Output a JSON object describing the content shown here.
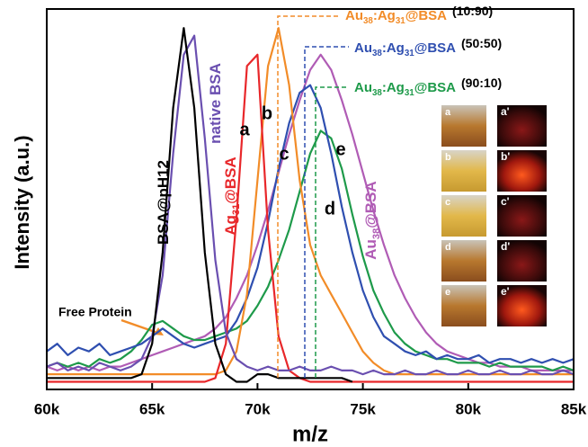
{
  "chart_data": {
    "type": "line",
    "x_label": "m/z",
    "y_label": "Intensity (a.u.)",
    "xlim": [
      60000,
      85000
    ],
    "ylim": [
      0,
      100
    ],
    "xticks": [
      {
        "value": 60000,
        "label": "60k"
      },
      {
        "value": 65000,
        "label": "65k"
      },
      {
        "value": 70000,
        "label": "70k"
      },
      {
        "value": 75000,
        "label": "75k"
      },
      {
        "value": 80000,
        "label": "80k"
      },
      {
        "value": 85000,
        "label": "85k"
      }
    ],
    "x": [
      60000,
      60500,
      61000,
      61500,
      62000,
      62500,
      63000,
      63500,
      64000,
      64500,
      65000,
      65500,
      66000,
      66500,
      67000,
      67500,
      68000,
      68500,
      69000,
      69500,
      70000,
      70500,
      71000,
      71500,
      72000,
      72500,
      73000,
      73500,
      74000,
      74500,
      75000,
      75500,
      76000,
      76500,
      77000,
      77500,
      78000,
      78500,
      79000,
      79500,
      80000,
      80500,
      81000,
      81500,
      82000,
      82500,
      83000,
      83500,
      84000,
      84500,
      85000
    ],
    "series": [
      {
        "color": "#b05cb5",
        "label": "e",
        "values": [
          6,
          5,
          6,
          5,
          6,
          5,
          6,
          6,
          7,
          8,
          9,
          10,
          11,
          12,
          13,
          14,
          16,
          19,
          24,
          30,
          38,
          47,
          57,
          67,
          76,
          84,
          88,
          84,
          76,
          67,
          57,
          47,
          38,
          30,
          24,
          19,
          15,
          12,
          10,
          9,
          8,
          7,
          7,
          6,
          6,
          6,
          5,
          5,
          5,
          5,
          5
        ]
      },
      {
        "color": "#1e9a4a",
        "label": "d",
        "values": [
          6,
          7,
          6,
          7,
          6,
          8,
          7,
          8,
          10,
          13,
          17,
          18,
          16,
          14,
          13,
          13,
          14,
          15,
          16,
          18,
          22,
          27,
          34,
          42,
          52,
          62,
          68,
          66,
          58,
          46,
          35,
          26,
          20,
          15,
          12,
          10,
          9,
          8,
          8,
          7,
          7,
          7,
          6,
          7,
          6,
          6,
          6,
          6,
          5,
          6,
          5
        ]
      },
      {
        "color": "#2f4fb0",
        "label": "c",
        "values": [
          10,
          12,
          9,
          11,
          10,
          12,
          9,
          10,
          11,
          12,
          14,
          16,
          14,
          12,
          11,
          12,
          13,
          14,
          18,
          24,
          32,
          44,
          58,
          70,
          78,
          80,
          74,
          62,
          48,
          36,
          26,
          19,
          14,
          12,
          10,
          9,
          10,
          8,
          9,
          8,
          8,
          9,
          7,
          8,
          8,
          7,
          8,
          7,
          8,
          7,
          8
        ]
      },
      {
        "color": "#f28c28",
        "label": "b",
        "values": [
          4,
          4,
          4,
          4,
          4,
          4,
          4,
          4,
          4,
          4,
          4,
          4,
          4,
          4,
          4,
          4,
          4,
          5,
          10,
          25,
          55,
          85,
          95,
          80,
          55,
          38,
          30,
          25,
          20,
          15,
          10,
          7,
          5,
          4,
          4,
          4,
          4,
          4,
          4,
          4,
          4,
          4,
          4,
          4,
          4,
          4,
          4,
          4,
          4,
          4,
          4
        ]
      },
      {
        "color": "#e8272a",
        "label": "a",
        "values": [
          2,
          2,
          2,
          2,
          2,
          2,
          2,
          2,
          2,
          2,
          2,
          2,
          2,
          2,
          2,
          2,
          3,
          12,
          45,
          85,
          88,
          42,
          14,
          5,
          3,
          2,
          2,
          2,
          2,
          2,
          2,
          2,
          2,
          2,
          2,
          2,
          2,
          2,
          2,
          2,
          2,
          2,
          2,
          2,
          2,
          2,
          2,
          2,
          2,
          2,
          2
        ]
      },
      {
        "color": "#6a4fb0",
        "values": [
          6,
          7,
          5,
          6,
          5,
          7,
          6,
          5,
          6,
          8,
          14,
          30,
          62,
          88,
          93,
          66,
          34,
          15,
          8,
          6,
          5,
          6,
          5,
          5,
          6,
          5,
          5,
          6,
          5,
          5,
          4,
          5,
          4,
          4,
          5,
          4,
          4,
          5,
          4,
          4,
          5,
          4,
          4,
          5,
          4,
          4,
          5,
          4,
          4,
          5,
          4
        ]
      },
      {
        "color": "#000000",
        "values": [
          3,
          3,
          3,
          3,
          3,
          3,
          3,
          3,
          3,
          4,
          12,
          36,
          74,
          95,
          74,
          36,
          12,
          4,
          2,
          2,
          4,
          4,
          3,
          3,
          3,
          3,
          3,
          3,
          3,
          2,
          null,
          null,
          null,
          null,
          null,
          null,
          null,
          null,
          null,
          null,
          null,
          null,
          null,
          null,
          null,
          null,
          null,
          null,
          null,
          null,
          null
        ]
      }
    ],
    "curve_labels": [
      {
        "parts": [
          "BSA@pH12"
        ],
        "color": "#000000"
      },
      {
        "parts": [
          "native BSA"
        ],
        "color": "#6a4fb0"
      },
      {
        "parts": [
          "Ag",
          "31",
          "@BSA"
        ],
        "color": "#e8272a"
      },
      {
        "parts": [
          "Au",
          "38",
          "@BSA"
        ],
        "color": "#b05cb5"
      }
    ],
    "annotations": [
      {
        "parts": [
          "Au",
          "38",
          ":Ag",
          "31",
          "@BSA"
        ],
        "ratio": "(10:90)",
        "color": "#f28c28"
      },
      {
        "parts": [
          "Au",
          "38",
          ":Ag",
          "31",
          "@BSA"
        ],
        "ratio": "(50:50)",
        "color": "#2f4fb0"
      },
      {
        "parts": [
          "Au",
          "38",
          ":Ag",
          "31",
          "@BSA"
        ],
        "ratio": "(90:10)",
        "color": "#1e9a4a"
      }
    ],
    "free_protein": "Free Protein",
    "insets": {
      "left": [
        "a",
        "b",
        "c",
        "d",
        "e"
      ],
      "right": [
        "a'",
        "b'",
        "c'",
        "d'",
        "e'"
      ]
    }
  }
}
